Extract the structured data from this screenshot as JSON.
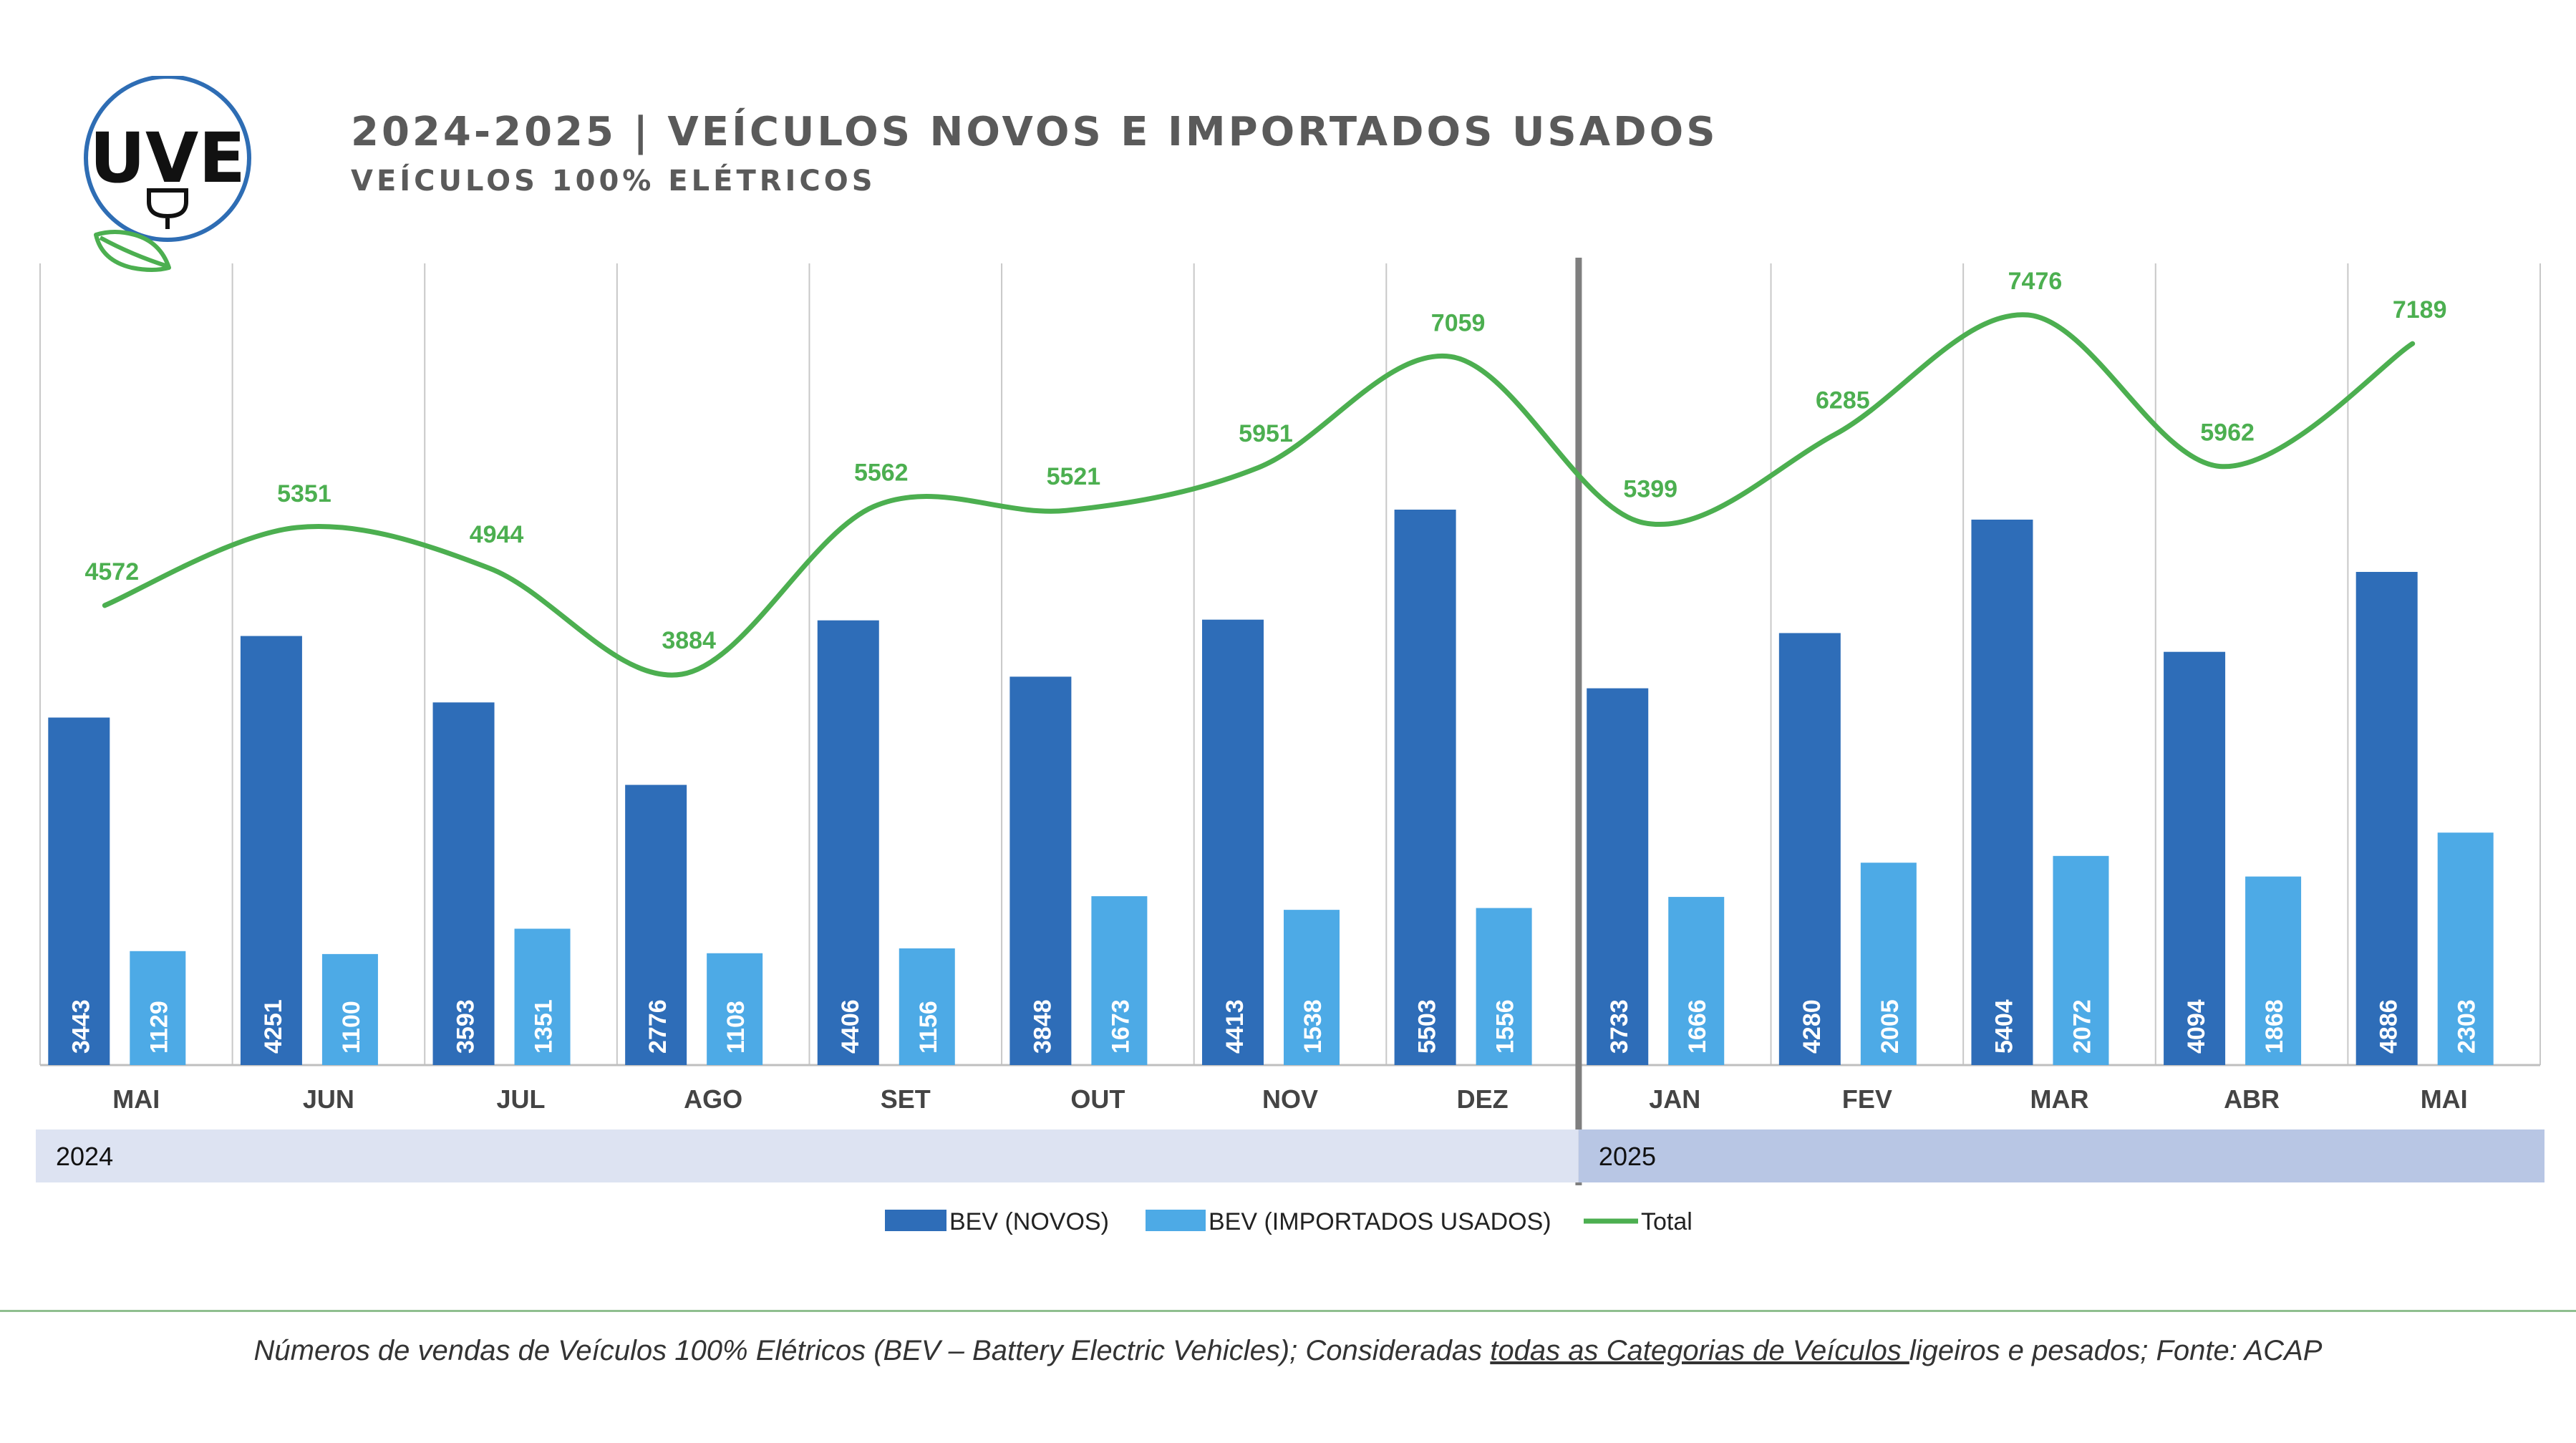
{
  "brand": {
    "logo_text": "UVE",
    "colors": {
      "logo_blue": "#2e6db4",
      "leaf_green": "#4caf50"
    }
  },
  "header": {
    "title": "2024-2025 | VEÍCULOS NOVOS E IMPORTADOS USADOS",
    "subtitle": "VEÍCULOS 100% ELÉTRICOS"
  },
  "chart_data": {
    "type": "bar",
    "categories": [
      "MAI",
      "JUN",
      "JUL",
      "AGO",
      "SET",
      "OUT",
      "NOV",
      "DEZ",
      "JAN",
      "FEV",
      "MAR",
      "ABR",
      "MAI"
    ],
    "year_groups": [
      {
        "label": "2024",
        "start_index": 0,
        "count": 8,
        "color": "#dde3f2"
      },
      {
        "label": "2025",
        "start_index": 8,
        "count": 5,
        "color": "#b8c6e4"
      }
    ],
    "series": [
      {
        "name": "BEV (NOVOS)",
        "type": "bar",
        "color": "#2e6db8",
        "values": [
          3443,
          4251,
          3593,
          2776,
          4406,
          3848,
          4413,
          5503,
          3733,
          4280,
          5404,
          4094,
          4886
        ]
      },
      {
        "name": "BEV (IMPORTADOS USADOS)",
        "type": "bar",
        "color": "#4daae6",
        "values": [
          1129,
          1100,
          1351,
          1108,
          1156,
          1673,
          1538,
          1556,
          1666,
          2005,
          2072,
          1868,
          2303
        ]
      },
      {
        "name": "Total",
        "type": "line",
        "color": "#4caf50",
        "values": [
          4572,
          5351,
          4944,
          3884,
          5562,
          5521,
          5951,
          7059,
          5399,
          6285,
          7476,
          5962,
          7189
        ]
      }
    ],
    "ylim": [
      0,
      8500
    ],
    "legend_position": "bottom",
    "grid": "vertical category separators",
    "data_labels": true
  },
  "footnote": {
    "part1": "Números de vendas de Veículos 100% Elétricos (BEV – Battery Electric Vehicles); Consideradas ",
    "underlined": "todas as Categorias de Veículos ",
    "part2": "ligeiros e pesados; Fonte: ACAP"
  }
}
